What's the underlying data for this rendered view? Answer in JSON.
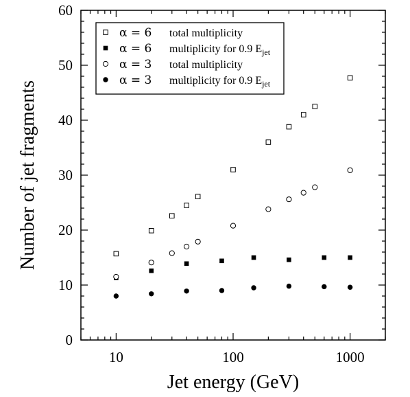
{
  "chart_data": {
    "type": "scatter",
    "xlabel": "Jet energy (GeV)",
    "ylabel": "Number of jet fragments",
    "xscale": "log",
    "xlim": [
      5,
      2000
    ],
    "ylim": [
      0,
      60
    ],
    "xticks": [
      10,
      100,
      1000
    ],
    "xtick_labels": [
      "10",
      "100",
      "1000"
    ],
    "yticks": [
      0,
      10,
      20,
      30,
      40,
      50,
      60
    ],
    "ytick_labels": [
      "0",
      "10",
      "20",
      "30",
      "40",
      "50",
      "60"
    ],
    "legend_position": "top-left",
    "grid": false,
    "series": [
      {
        "name": "α = 6 total multiplicity",
        "legend": {
          "param": "α = 6",
          "text": "total multiplicity",
          "sub": ""
        },
        "marker": "open-square",
        "x": [
          10,
          20,
          30,
          40,
          50,
          100,
          200,
          300,
          400,
          500,
          1000
        ],
        "y": [
          15.7,
          19.9,
          22.6,
          24.5,
          26.1,
          31.0,
          36.0,
          38.8,
          41.0,
          42.5,
          47.7
        ]
      },
      {
        "name": "α = 6 multiplicity for 0.9 Ejet",
        "legend": {
          "param": "α = 6",
          "text": "multiplicity for 0.9 E",
          "sub": "jet"
        },
        "marker": "filled-square",
        "x": [
          10,
          20,
          40,
          80,
          150,
          300,
          600,
          1000
        ],
        "y": [
          11.3,
          12.6,
          13.9,
          14.4,
          15.0,
          14.6,
          15.0,
          15.0
        ]
      },
      {
        "name": "α = 3 total multiplicity",
        "legend": {
          "param": "α = 3",
          "text": "total multiplicity",
          "sub": ""
        },
        "marker": "open-circle",
        "x": [
          10,
          20,
          30,
          40,
          50,
          100,
          200,
          300,
          400,
          500,
          1000
        ],
        "y": [
          11.5,
          14.1,
          15.8,
          17.0,
          17.9,
          20.8,
          23.8,
          25.6,
          26.8,
          27.8,
          30.9
        ]
      },
      {
        "name": "α = 3 multiplicity for 0.9 Ejet",
        "legend": {
          "param": "α = 3",
          "text": "multiplicity for 0.9 E",
          "sub": "jet"
        },
        "marker": "filled-circle",
        "x": [
          10,
          20,
          40,
          80,
          150,
          300,
          600,
          1000
        ],
        "y": [
          8.0,
          8.4,
          8.9,
          9.0,
          9.5,
          9.8,
          9.7,
          9.6
        ]
      }
    ]
  }
}
